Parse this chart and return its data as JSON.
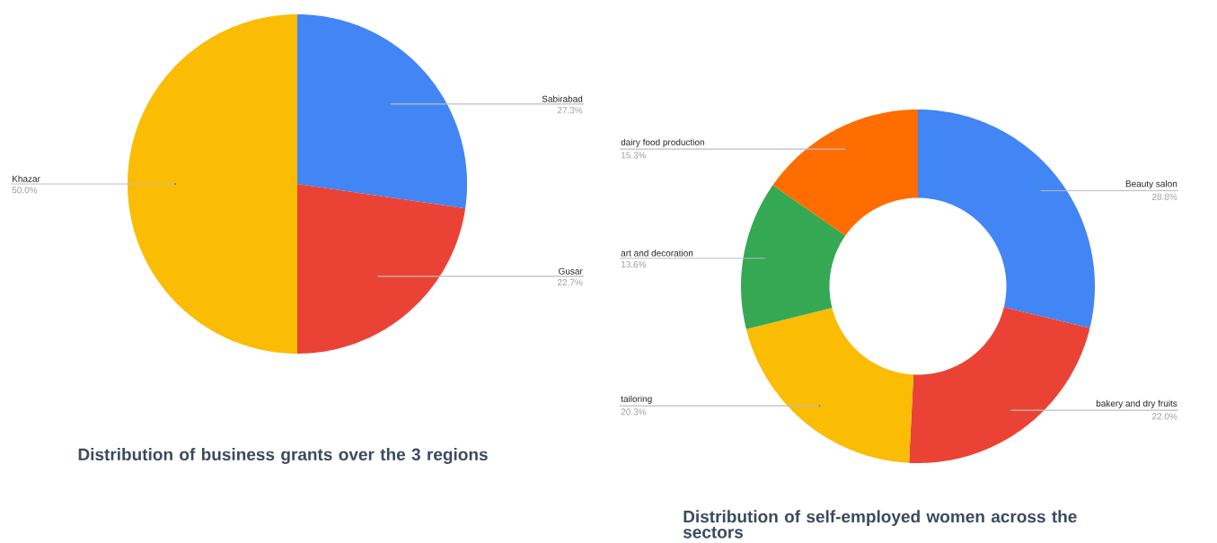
{
  "chart_data": [
    {
      "type": "pie",
      "title": "Distribution of business grants over the 3 regions",
      "categories": [
        "Sabirabad",
        "Gusar",
        "Khazar"
      ],
      "values": [
        27.3,
        22.7,
        50.0
      ],
      "value_labels": [
        "27.3%",
        "22.7%",
        "50.0%"
      ],
      "colors": [
        "#4285f4",
        "#ea4335",
        "#fbbc04"
      ],
      "legend": false
    },
    {
      "type": "donut",
      "title": "Distribution of self-employed women across the sectors",
      "categories": [
        "Beauty salon",
        "bakery and dry fruits",
        "tailoring",
        "art and decoration",
        "dairy food production"
      ],
      "values": [
        28.8,
        22.0,
        20.3,
        13.6,
        15.3
      ],
      "value_labels": [
        "28.8%",
        "22.0%",
        "20.3%",
        "13.6%",
        "15.3%"
      ],
      "colors": [
        "#4285f4",
        "#ea4335",
        "#fbbc04",
        "#34a853",
        "#ff6d01"
      ],
      "legend": false
    }
  ]
}
